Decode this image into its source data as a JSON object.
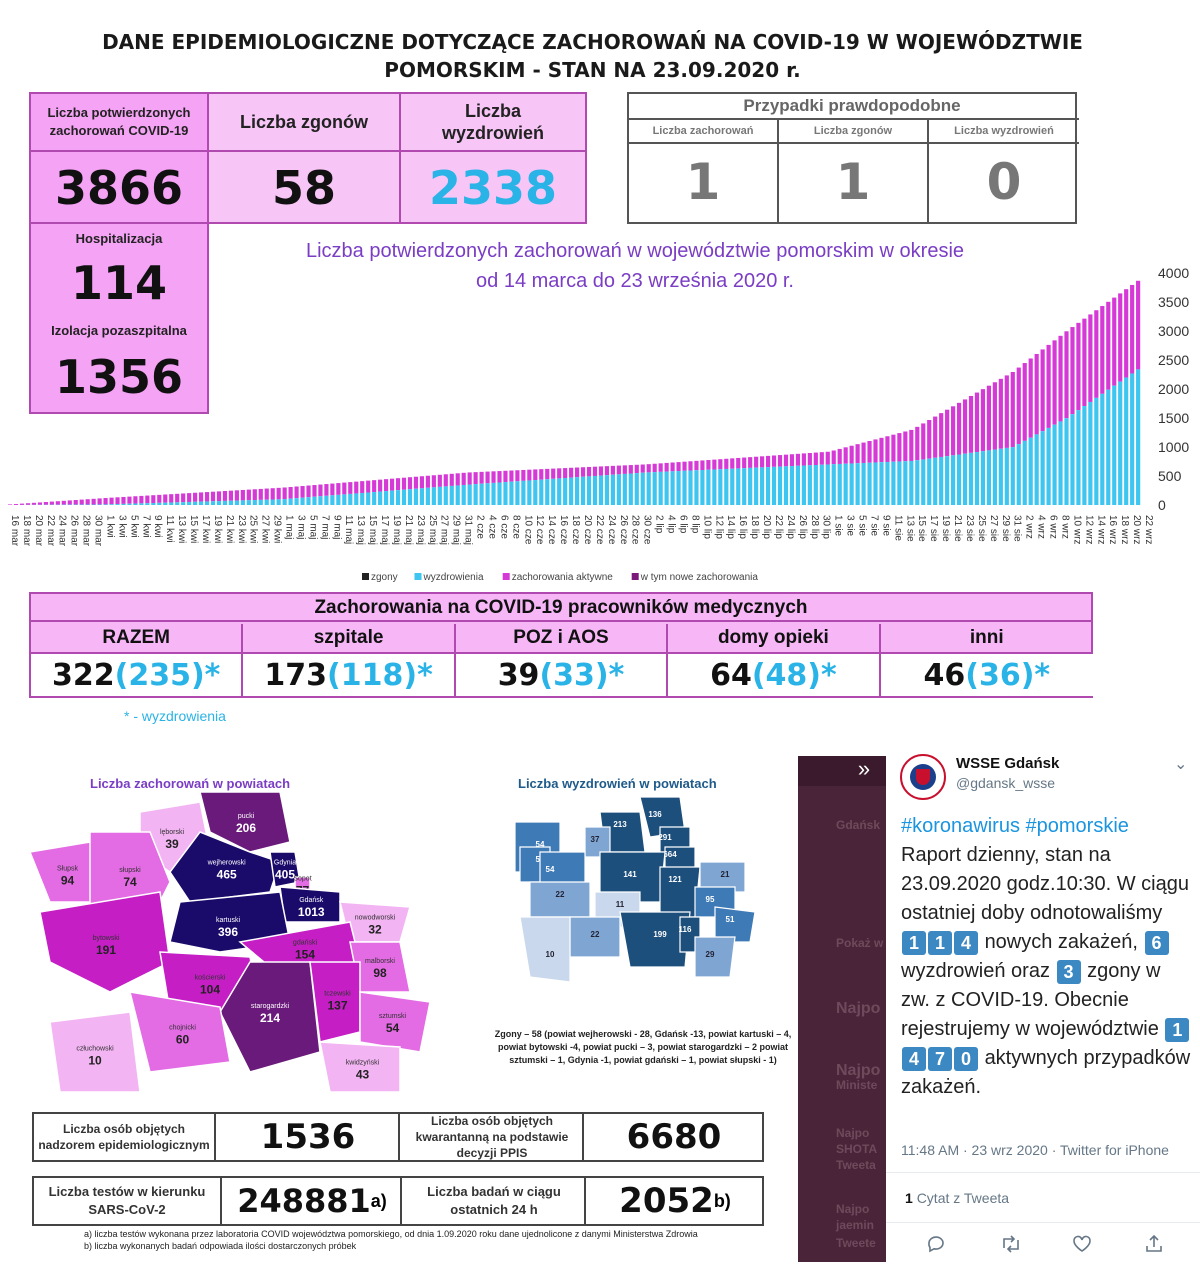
{
  "header": {
    "title_line1": "DANE EPIDEMIOLOGICZNE DOTYCZĄCE ZACHOROWAŃ NA COVID-19 W WOJEWÓDZTWIE",
    "title_line2": "POMORSKIM - STAN NA 23.09.2020 r."
  },
  "stats": {
    "confirmed_label": "Liczba potwierdzonych zachorowań COVID-19",
    "confirmed_value": "3866",
    "deaths_label": "Liczba zgonów",
    "deaths_value": "58",
    "recovered_label": "Liczba wyzdrowień",
    "recovered_value": "2338",
    "hosp_label": "Hospitalizacja",
    "hosp_value": "114",
    "isolation_label": "Izolacja pozaszpitalna",
    "isolation_value": "1356"
  },
  "probable": {
    "title": "Przypadki prawdopodobne",
    "cols": [
      {
        "label": "Liczba zachorowań",
        "value": "1"
      },
      {
        "label": "Liczba zgonów",
        "value": "1"
      },
      {
        "label": "Liczba wyzdrowień",
        "value": "0"
      }
    ]
  },
  "chart_data": {
    "type": "bar",
    "title_line1": "Liczba potwierdzonych zachorowań w województwie pomorskim w okresie",
    "title_line2": "od 14 marca do 23 września 2020 r.",
    "ylim": [
      0,
      4000
    ],
    "yticks": [
      "4000",
      "3500",
      "3000",
      "2500",
      "2000",
      "1500",
      "1000",
      "500",
      "0"
    ],
    "xtick_labels": [
      "16 mar",
      "18 mar",
      "20 mar",
      "22 mar",
      "24 mar",
      "26 mar",
      "28 mar",
      "30 mar",
      "1 kwi",
      "3 kwi",
      "5 kwi",
      "7 kwi",
      "9 kwi",
      "11 kwi",
      "13 kwi",
      "15 kwi",
      "17 kwi",
      "19 kwi",
      "21 kwi",
      "23 kwi",
      "25 kwi",
      "27 kwi",
      "29 kwi",
      "1 maj",
      "3 maj",
      "5 maj",
      "7 maj",
      "9 maj",
      "11 maj",
      "13 maj",
      "15 maj",
      "17 maj",
      "19 maj",
      "21 maj",
      "23 maj",
      "25 maj",
      "27 maj",
      "29 maj",
      "31 maj",
      "2 cze",
      "4 cze",
      "6 cze",
      "8 cze",
      "10 cze",
      "12 cze",
      "14 cze",
      "16 cze",
      "18 cze",
      "20 cze",
      "22 cze",
      "24 cze",
      "26 cze",
      "28 cze",
      "30 cze",
      "2 lip",
      "4 lip",
      "6 lip",
      "8 lip",
      "10 lip",
      "12 lip",
      "14 lip",
      "16 lip",
      "18 lip",
      "20 lip",
      "22 lip",
      "24 lip",
      "26 lip",
      "28 lip",
      "30 lip",
      "1 sie",
      "3 sie",
      "5 sie",
      "7 sie",
      "9 sie",
      "11 sie",
      "13 sie",
      "15 sie",
      "17 sie",
      "19 sie",
      "21 sie",
      "23 sie",
      "25 sie",
      "27 sie",
      "29 sie",
      "31 sie",
      "2 wrz",
      "4 wrz",
      "6 wrz",
      "8 wrz",
      "10 wrz",
      "12 wrz",
      "14 wrz",
      "16 wrz",
      "18 wrz",
      "20 wrz",
      "22 wrz"
    ],
    "legend": [
      {
        "name": "zgony",
        "color": "#222222"
      },
      {
        "name": "wyzdrowienia",
        "color": "#3ec6f0"
      },
      {
        "name": "zachorowania aktywne",
        "color": "#d63ad6"
      },
      {
        "name": "w tym nowe zachorowania",
        "color": "#7a1a7a"
      }
    ],
    "totals_anchor": [
      {
        "x": "16 mar",
        "total": 10
      },
      {
        "x": "1 kwi",
        "total": 120
      },
      {
        "x": "1 maj",
        "total": 300
      },
      {
        "x": "1 cze",
        "total": 560
      },
      {
        "x": "1 lip",
        "total": 700
      },
      {
        "x": "1 sie",
        "total": 920
      },
      {
        "x": "15 sie",
        "total": 1300
      },
      {
        "x": "1 wrz",
        "total": 2300
      },
      {
        "x": "10 wrz",
        "total": 3000
      },
      {
        "x": "22 wrz",
        "total": 3866
      }
    ],
    "recovered_anchor": [
      {
        "x": "16 mar",
        "value": 0
      },
      {
        "x": "1 kwi",
        "value": 10
      },
      {
        "x": "1 maj",
        "value": 100
      },
      {
        "x": "1 cze",
        "value": 350
      },
      {
        "x": "1 lip",
        "value": 560
      },
      {
        "x": "1 sie",
        "value": 700
      },
      {
        "x": "15 sie",
        "value": 760
      },
      {
        "x": "1 wrz",
        "value": 1000
      },
      {
        "x": "10 wrz",
        "value": 1500
      },
      {
        "x": "22 wrz",
        "value": 2338
      }
    ]
  },
  "medical": {
    "title": "Zachorowania na COVID-19 pracowników medycznych",
    "cols": [
      {
        "label": "RAZEM",
        "value": "322",
        "rec": "(235)*"
      },
      {
        "label": "szpitale",
        "value": "173",
        "rec": "(118)*"
      },
      {
        "label": "POZ i AOS",
        "value": "39",
        "rec": "(33)*"
      },
      {
        "label": "domy opieki",
        "value": "64",
        "rec": "(48)*"
      },
      {
        "label": "inni",
        "value": "46",
        "rec": "(36)*"
      }
    ],
    "footnote": "* - wyzdrowienia"
  },
  "maps": {
    "cases_title": "Liczba zachorowań w powiatach",
    "recovered_title": "Liczba wyzdrowień w powiatach",
    "cases_regions": [
      {
        "name": "pucki",
        "value": "206"
      },
      {
        "name": "lęborski",
        "value": "39"
      },
      {
        "name": "wejherowski",
        "value": "465"
      },
      {
        "name": "Słupsk",
        "value": "94"
      },
      {
        "name": "słupski",
        "value": "74"
      },
      {
        "name": "Gdynia",
        "value": "405"
      },
      {
        "name": "Sopot",
        "value": "77"
      },
      {
        "name": "Gdańsk",
        "value": "1013"
      },
      {
        "name": "kartuski",
        "value": "396"
      },
      {
        "name": "nowodworski",
        "value": "32"
      },
      {
        "name": "bytowski",
        "value": "191"
      },
      {
        "name": "gdański",
        "value": "154"
      },
      {
        "name": "malborski",
        "value": "98"
      },
      {
        "name": "kościerski",
        "value": "104"
      },
      {
        "name": "starogardzki",
        "value": "214"
      },
      {
        "name": "tczewski",
        "value": "137"
      },
      {
        "name": "sztumski",
        "value": "54"
      },
      {
        "name": "chojnicki",
        "value": "60"
      },
      {
        "name": "człuchowski",
        "value": "10"
      },
      {
        "name": "kwidzyński",
        "value": "43"
      }
    ],
    "recovered_values": [
      "136",
      "213",
      "37",
      "54",
      "291",
      "664",
      "51",
      "54",
      "141",
      "121",
      "21",
      "22",
      "11",
      "95",
      "22",
      "51",
      "10",
      "199",
      "116",
      "29"
    ],
    "deaths_note": "Zgony – 58 (powiat wejherowski - 28, Gdańsk -13, powiat kartuski – 4, powiat bytowski -4, powiat pucki – 3, powiat starogardzki – 2 powiat sztumski – 1, Gdynia -1, powiat gdański – 1, powiat słupski - 1)"
  },
  "bottom": {
    "supervision_label": "Liczba osób objętych nadzorem epidemiologicznym",
    "supervision_value": "1536",
    "quarantine_label": "Liczba osób objętych kwarantanną na podstawie decyzji PPIS",
    "quarantine_value": "6680",
    "tests_label": "Liczba testów w kierunku SARS-CoV-2",
    "tests_value": "248881",
    "tests_sup": "a)",
    "tests24_label": "Liczba badań w ciągu ostatnich 24 h",
    "tests24_value": "2052",
    "tests24_sup": "b)",
    "note_a": "a) liczba testów wykonana przez laboratoria COVID województwa pomorskiego, od dnia 1.09.2020 roku dane ujednolicone z danymi Ministerstwa Zdrowia",
    "note_b": "b) liczba wykonanych badań odpowiada ilości dostarczonych próbek"
  },
  "tweet": {
    "account_name": "WSSE Gdańsk",
    "handle": "@gdansk_wsse",
    "hashtags": "#koronawirus #pomorskie",
    "text_1": "Raport dzienny, stan na 23.09.2020 godz.10:30. W ciągu ostatniej doby odnotowaliśmy",
    "num_new": [
      "1",
      "1",
      "4"
    ],
    "text_2": "nowych zakażeń,",
    "num_rec": [
      "6"
    ],
    "text_3": "wyzdrowień oraz",
    "num_death": [
      "3"
    ],
    "text_4": "zgony w zw. z COVID-19. Obecnie rejestrujemy w województwie",
    "num_active": [
      "1",
      "4",
      "7",
      "0"
    ],
    "text_5": "aktywnych przypadków zakażeń.",
    "meta": "11:48 AM · 23 wrz 2020 · Twitter for iPhone",
    "quote_count": "1",
    "quote_label": "Cytat z Tweeta"
  },
  "left_strip": {
    "items": [
      "Gdańsk",
      "Pokaż w",
      "Najpo",
      "Najpo",
      "Ministe",
      "Najpo",
      "SHOTA",
      "Tweeta",
      "Najpo",
      "jaemin",
      "Tweete"
    ]
  }
}
